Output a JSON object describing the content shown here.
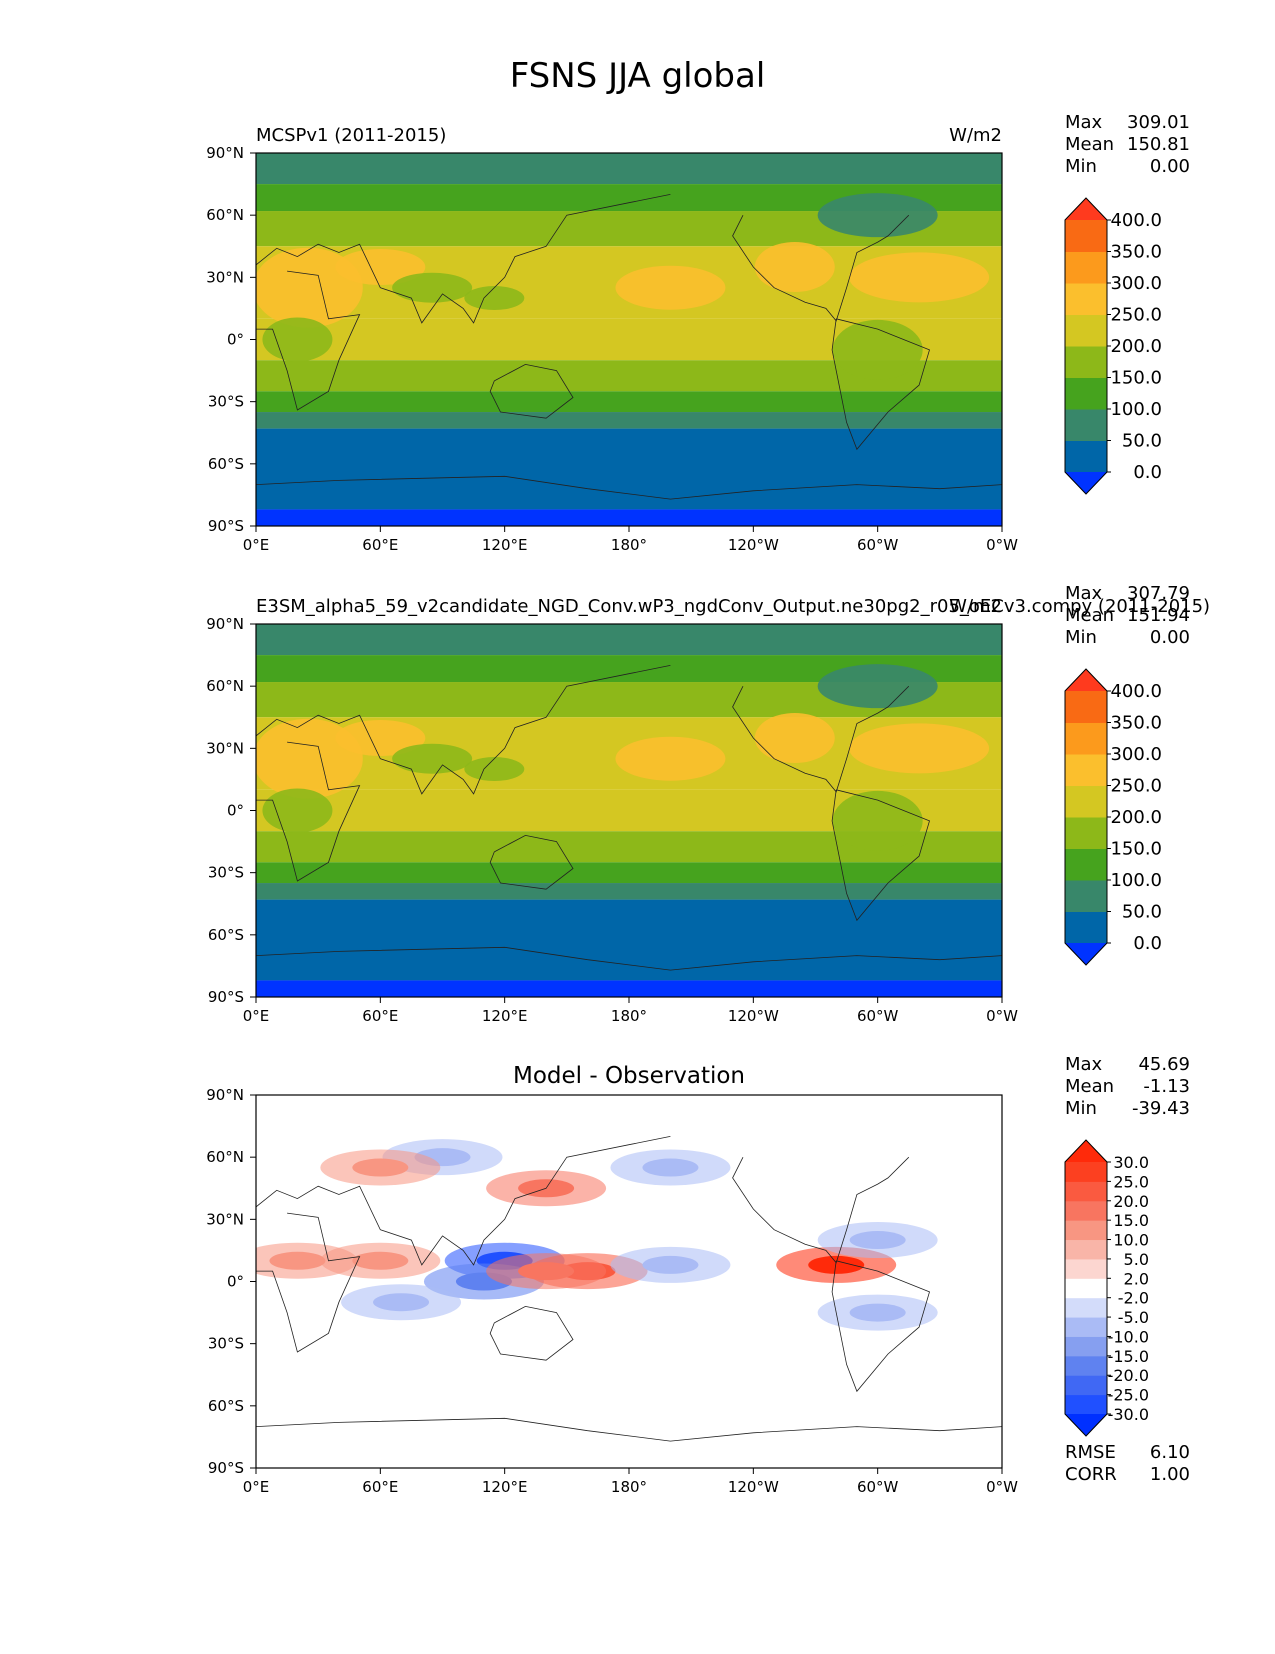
{
  "figure": {
    "title": "FSNS JJA global"
  },
  "chart_data": [
    {
      "type": "heatmap",
      "panel": "test",
      "left_title": "MCSPv1 (2011-2015)",
      "center_title": "",
      "right_title": "W/m2",
      "stats": {
        "Max": "309.01",
        "Mean": "150.81",
        "Min": "0.00"
      },
      "colorbar": {
        "levels": [
          "0.0",
          "50.0",
          "100.0",
          "150.0",
          "200.0",
          "250.0",
          "300.0",
          "350.0",
          "400.0"
        ],
        "colors": [
          "#0033ff",
          "#0066a8",
          "#38876a",
          "#46a31e",
          "#8db819",
          "#d4c722",
          "#fbbf2d",
          "#fc9a1c",
          "#f96a14",
          "#ff3a1e"
        ]
      },
      "xticks": [
        "0°E",
        "60°E",
        "120°E",
        "180°",
        "120°W",
        "60°W",
        "0°W"
      ],
      "yticks": [
        "90°N",
        "60°N",
        "30°N",
        "0°",
        "30°S",
        "60°S",
        "90°S"
      ],
      "xlim": [
        0,
        360
      ],
      "ylim": [
        -90,
        90
      ],
      "zonal_bands": [
        {
          "lat": [
            75,
            90
          ],
          "level": 2
        },
        {
          "lat": [
            62,
            75
          ],
          "level": 3
        },
        {
          "lat": [
            45,
            62
          ],
          "level": 4
        },
        {
          "lat": [
            10,
            45
          ],
          "level": 5
        },
        {
          "lat": [
            -10,
            10
          ],
          "level": 5
        },
        {
          "lat": [
            -25,
            -10
          ],
          "level": 4
        },
        {
          "lat": [
            -35,
            -25
          ],
          "level": 3
        },
        {
          "lat": [
            -43,
            -35
          ],
          "level": 2
        },
        {
          "lat": [
            -82,
            -43
          ],
          "level": 1
        },
        {
          "lat": [
            -90,
            -82
          ],
          "level": 0
        }
      ]
    },
    {
      "type": "heatmap",
      "panel": "reference",
      "left_title": "E3SM_alpha5_59_v2candidate_NGD_Conv.wP3_ngdConv_Output.ne30pg2_r05_oECv3.compy (2011-2015)",
      "center_title": "",
      "right_title": "W/m2",
      "stats": {
        "Max": "307.79",
        "Mean": "151.94",
        "Min": "0.00"
      },
      "colorbar": {
        "levels": [
          "0.0",
          "50.0",
          "100.0",
          "150.0",
          "200.0",
          "250.0",
          "300.0",
          "350.0",
          "400.0"
        ],
        "colors": [
          "#0033ff",
          "#0066a8",
          "#38876a",
          "#46a31e",
          "#8db819",
          "#d4c722",
          "#fbbf2d",
          "#fc9a1c",
          "#f96a14",
          "#ff3a1e"
        ]
      },
      "xticks": [
        "0°E",
        "60°E",
        "120°E",
        "180°",
        "120°W",
        "60°W",
        "0°W"
      ],
      "yticks": [
        "90°N",
        "60°N",
        "30°N",
        "0°",
        "30°S",
        "60°S",
        "90°S"
      ],
      "xlim": [
        0,
        360
      ],
      "ylim": [
        -90,
        90
      ],
      "zonal_bands": [
        {
          "lat": [
            75,
            90
          ],
          "level": 2
        },
        {
          "lat": [
            62,
            75
          ],
          "level": 3
        },
        {
          "lat": [
            45,
            62
          ],
          "level": 4
        },
        {
          "lat": [
            10,
            45
          ],
          "level": 5
        },
        {
          "lat": [
            -10,
            10
          ],
          "level": 5
        },
        {
          "lat": [
            -25,
            -10
          ],
          "level": 4
        },
        {
          "lat": [
            -35,
            -25
          ],
          "level": 3
        },
        {
          "lat": [
            -43,
            -35
          ],
          "level": 2
        },
        {
          "lat": [
            -82,
            -43
          ],
          "level": 1
        },
        {
          "lat": [
            -90,
            -82
          ],
          "level": 0
        }
      ]
    },
    {
      "type": "heatmap",
      "panel": "difference",
      "left_title": "",
      "center_title": "Model - Observation",
      "right_title": "",
      "stats": {
        "Max": "45.69",
        "Mean": "-1.13",
        "Min": "-39.43"
      },
      "metrics": {
        "RMSE": "6.10",
        "CORR": "1.00"
      },
      "colorbar": {
        "levels": [
          "-30.0",
          "-25.0",
          "-20.0",
          "-15.0",
          "-10.0",
          "-5.0",
          "-2.0",
          "2.0",
          "5.0",
          "10.0",
          "15.0",
          "20.0",
          "25.0",
          "30.0"
        ],
        "colors": [
          "#0030ff",
          "#2050ff",
          "#4068f4",
          "#5f82f0",
          "#869ff0",
          "#aabbf5",
          "#d3dcfa",
          "#ffffff",
          "#fcd6d0",
          "#f9b5a8",
          "#f89682",
          "#f87560",
          "#fa5a40",
          "#fc4020",
          "#ff2a0a"
        ]
      },
      "xticks": [
        "0°E",
        "60°E",
        "120°E",
        "180°",
        "120°W",
        "60°W",
        "0°W"
      ],
      "yticks": [
        "90°N",
        "60°N",
        "30°N",
        "0°",
        "30°S",
        "60°S",
        "90°S"
      ],
      "xlim": [
        0,
        360
      ],
      "ylim": [
        -90,
        90
      ],
      "anomalies": [
        {
          "lon": 120,
          "lat": 10,
          "value": -30
        },
        {
          "lon": 110,
          "lat": 0,
          "value": -20
        },
        {
          "lon": 160,
          "lat": 5,
          "value": 20
        },
        {
          "lon": 140,
          "lat": 5,
          "value": 15
        },
        {
          "lon": 280,
          "lat": 8,
          "value": 30
        },
        {
          "lon": 200,
          "lat": 8,
          "value": -10
        },
        {
          "lon": 60,
          "lat": 10,
          "value": 10
        },
        {
          "lon": 20,
          "lat": 10,
          "value": 10
        },
        {
          "lon": 140,
          "lat": 45,
          "value": 15
        },
        {
          "lon": 200,
          "lat": 55,
          "value": -10
        },
        {
          "lon": 300,
          "lat": 20,
          "value": -10
        },
        {
          "lon": 90,
          "lat": 60,
          "value": -10
        },
        {
          "lon": 60,
          "lat": 55,
          "value": 10
        },
        {
          "lon": 300,
          "lat": -15,
          "value": -10
        },
        {
          "lon": 70,
          "lat": -10,
          "value": -10
        }
      ]
    }
  ]
}
